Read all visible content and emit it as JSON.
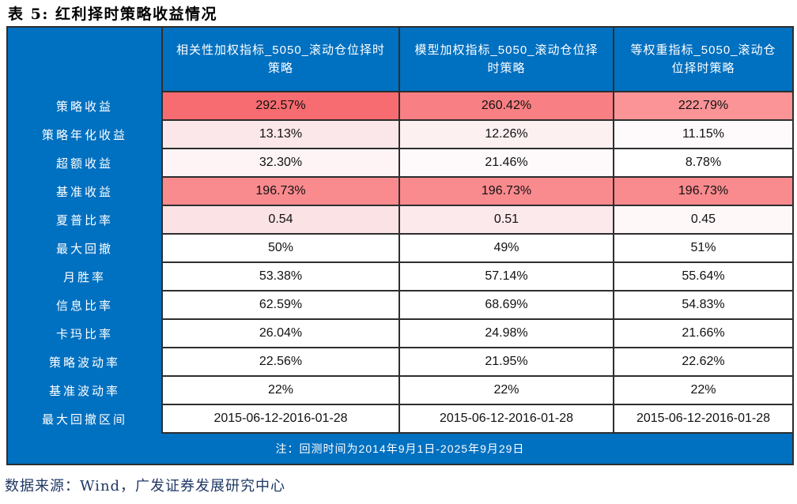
{
  "title": "表 5:  红利择时策略收益情况",
  "table": {
    "col_headers": [
      "相关性加权指标_5050_滚动仓位择时策略",
      "模型加权指标_5050_滚动仓位择时策略",
      "等权重指标_5050_滚动仓位择时策略"
    ],
    "rows": [
      {
        "label": "策略收益",
        "values": [
          "292.57%",
          "260.42%",
          "222.79%"
        ],
        "colors": [
          "#F76C70",
          "#F87F83",
          "#FA9497"
        ]
      },
      {
        "label": "策略年化收益",
        "values": [
          "13.13%",
          "12.26%",
          "11.15%"
        ],
        "colors": [
          "#FBE7E9",
          "#FDF0F1",
          "#FEFAFB"
        ]
      },
      {
        "label": "超额收益",
        "values": [
          "32.30%",
          "21.46%",
          "8.78%"
        ],
        "colors": [
          "#FEF4F5",
          "#FEFAFB",
          "#FFFFFF"
        ]
      },
      {
        "label": "基准收益",
        "values": [
          "196.73%",
          "196.73%",
          "196.73%"
        ],
        "colors": [
          "#F98A8E",
          "#F98A8E",
          "#F98A8E"
        ]
      },
      {
        "label": "夏普比率",
        "values": [
          "0.54",
          "0.51",
          "0.45"
        ],
        "colors": [
          "#FBE2E5",
          "#FCE9EC",
          "#FEF8F9"
        ]
      },
      {
        "label": "最大回撤",
        "values": [
          "50%",
          "49%",
          "51%"
        ],
        "colors": [
          "#FFFFFF",
          "#FFFFFF",
          "#FFFFFF"
        ]
      },
      {
        "label": "月胜率",
        "values": [
          "53.38%",
          "57.14%",
          "55.64%"
        ],
        "colors": [
          "#FFFFFF",
          "#FFFFFF",
          "#FFFFFF"
        ]
      },
      {
        "label": "信息比率",
        "values": [
          "62.59%",
          "68.69%",
          "54.83%"
        ],
        "colors": [
          "#FFFFFF",
          "#FFFFFF",
          "#FFFFFF"
        ]
      },
      {
        "label": "卡玛比率",
        "values": [
          "26.04%",
          "24.98%",
          "21.66%"
        ],
        "colors": [
          "#FFFFFF",
          "#FFFFFF",
          "#FFFFFF"
        ]
      },
      {
        "label": "策略波动率",
        "values": [
          "22.56%",
          "21.95%",
          "22.62%"
        ],
        "colors": [
          "#FFFFFF",
          "#FFFFFF",
          "#FFFFFF"
        ]
      },
      {
        "label": "基准波动率",
        "values": [
          "22%",
          "22%",
          "22%"
        ],
        "colors": [
          "#FFFFFF",
          "#FFFFFF",
          "#FFFFFF"
        ]
      },
      {
        "label": "最大回撤区间",
        "values": [
          "2015-06-12-2016-01-28",
          "2015-06-12-2016-01-28",
          "2015-06-12-2016-01-28"
        ],
        "colors": [
          "#FFFFFF",
          "#FFFFFF",
          "#FFFFFF"
        ]
      }
    ],
    "note": "注：回测时间为2014年9月1日-2025年9月29日"
  },
  "source": "数据来源：Wind，广发证券发展研究中心",
  "colors": {
    "header_blue": "#0070C0",
    "cell_border": "#2e2e2e",
    "strong_red": "#F76C70",
    "benchmark_pink": "#F98A8E",
    "source_text": "#1F3864",
    "title_text": "#000000"
  }
}
